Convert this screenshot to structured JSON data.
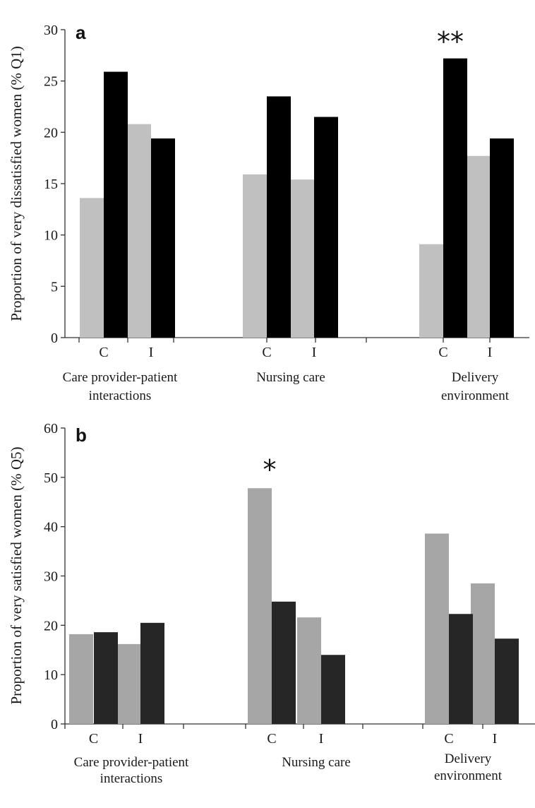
{
  "chart_data": [
    {
      "type": "bar",
      "panel": "a",
      "ylabel": "Proportion of very dissatisfied  women (% Q1)",
      "ylim": [
        0,
        30
      ],
      "yticks": [
        0,
        5,
        10,
        15,
        20,
        25,
        30
      ],
      "categories": [
        "C",
        "I",
        "C",
        "I",
        "C",
        "I"
      ],
      "groups": [
        "Care provider-patient interactions",
        "Nursing care",
        "Delivery environment"
      ],
      "series": [
        {
          "values": [
            13.6,
            20.8,
            15.9,
            15.4,
            9.1,
            17.7
          ]
        },
        {
          "values": [
            25.9,
            19.4,
            23.5,
            21.5,
            27.2,
            19.4
          ]
        }
      ],
      "annotations": [
        {
          "text": "**",
          "bar_index": 4
        }
      ],
      "colors": [
        "#c0c0c0",
        "#000000"
      ]
    },
    {
      "type": "bar",
      "panel": "b",
      "ylabel": "Proportion of very satisfied women (% Q5)",
      "ylim": [
        0,
        60
      ],
      "yticks": [
        0,
        10,
        20,
        30,
        40,
        50,
        60
      ],
      "categories": [
        "C",
        "I",
        "C",
        "I",
        "C",
        "I"
      ],
      "groups": [
        "Care provider-patient interactions",
        "Nursing care",
        "Delivery environment"
      ],
      "series": [
        {
          "values": [
            18.2,
            16.2,
            47.8,
            21.6,
            38.6,
            28.5
          ]
        },
        {
          "values": [
            18.6,
            20.5,
            24.8,
            14.0,
            22.3,
            17.3
          ]
        }
      ],
      "annotations": [
        {
          "text": "*",
          "bar_index": 2
        }
      ],
      "colors": [
        "#a6a6a6",
        "#262626"
      ]
    }
  ]
}
